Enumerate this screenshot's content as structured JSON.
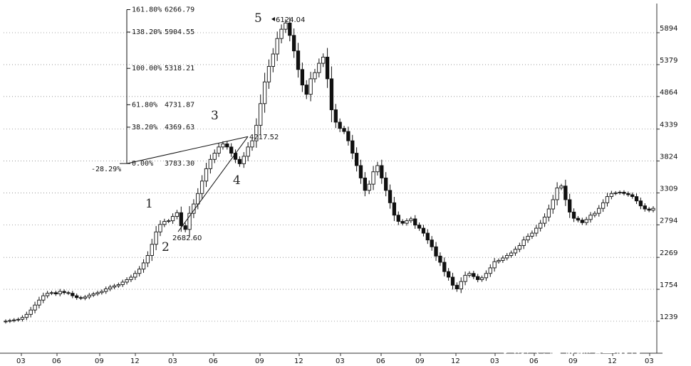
{
  "chart_data": {
    "type": "candlestick",
    "y_axis": {
      "ticks": [
        1239,
        1754,
        2269,
        2794,
        3309,
        3824,
        4339,
        4864,
        5379,
        5894
      ],
      "range": [
        1050,
        6400
      ]
    },
    "x_axis": {
      "ticks": [
        "03",
        "06",
        "09",
        "12",
        "03",
        "06",
        "09",
        "12",
        "03",
        "06",
        "09",
        "12",
        "03",
        "06",
        "09",
        "12",
        "03"
      ]
    },
    "grid": "horizontal dotted",
    "fibonacci": [
      {
        "pct": "161.80%",
        "value": "6266.79"
      },
      {
        "pct": "138.20%",
        "value": "5904.55"
      },
      {
        "pct": "100.00%",
        "value": "5318.21"
      },
      {
        "pct": "61.80%",
        "value": "4731.87"
      },
      {
        "pct": "38.20%",
        "value": "4369.63"
      },
      {
        "pct": "0.00%",
        "value": "3783.30"
      }
    ],
    "fib_side_label": "-28.29%",
    "wave_labels": [
      "1",
      "2",
      "3",
      "4",
      "5"
    ],
    "points": [
      {
        "label": "2682.60",
        "value": 2682.6
      },
      {
        "label": "4217.52",
        "value": 4217.52
      },
      {
        "label": "6124.04",
        "value": 6124.04
      }
    ],
    "series_closes": [
      1240,
      1250,
      1260,
      1270,
      1300,
      1350,
      1420,
      1500,
      1580,
      1650,
      1690,
      1700,
      1680,
      1720,
      1700,
      1690,
      1650,
      1620,
      1610,
      1630,
      1660,
      1680,
      1700,
      1720,
      1760,
      1790,
      1810,
      1830,
      1870,
      1910,
      1950,
      2010,
      2080,
      2180,
      2300,
      2480,
      2680,
      2800,
      2850,
      2860,
      2930,
      2990,
      2780,
      2720,
      2980,
      3130,
      3300,
      3500,
      3700,
      3850,
      3950,
      4050,
      4100,
      4050,
      3950,
      3850,
      3780,
      3900,
      4050,
      4150,
      4400,
      4750,
      5100,
      5350,
      5550,
      5800,
      5950,
      6050,
      5850,
      5600,
      5300,
      5050,
      4900,
      5150,
      5250,
      5400,
      5500,
      5150,
      4650,
      4450,
      4350,
      4300,
      4150,
      3950,
      3750,
      3550,
      3350,
      3450,
      3650,
      3750,
      3550,
      3350,
      3150,
      2950,
      2850,
      2820,
      2860,
      2890,
      2790,
      2740,
      2660,
      2550,
      2440,
      2290,
      2190,
      2040,
      1950,
      1820,
      1760,
      1880,
      1980,
      2010,
      1960,
      1910,
      1940,
      2010,
      2100,
      2200,
      2220,
      2260,
      2300,
      2340,
      2400,
      2460,
      2550,
      2610,
      2660,
      2740,
      2820,
      2920,
      3050,
      3200,
      3390,
      3420,
      3200,
      3000,
      2900,
      2870,
      2830,
      2880,
      2950,
      2980,
      3060,
      3150,
      3250,
      3300,
      3310,
      3320,
      3300,
      3280,
      3250,
      3180,
      3100,
      3050,
      3030,
      3060
    ]
  },
  "watermark": "头条 @在瑜伽路上前行"
}
